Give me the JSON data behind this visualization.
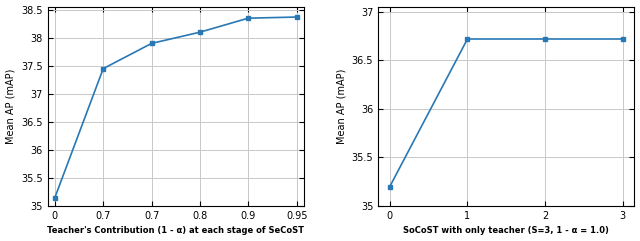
{
  "left": {
    "x_positions": [
      0,
      1,
      2,
      3,
      4,
      5
    ],
    "x_tick_labels": [
      "0",
      "0.7",
      "0.7",
      "0.8",
      "0.9",
      "0.95"
    ],
    "y": [
      35.15,
      37.45,
      37.9,
      38.1,
      38.35,
      38.37
    ],
    "ylabel": "Mean AP (mAP)",
    "xlabel": "Teacher's Contribution (1 - α) at each stage of SeCoST",
    "ylim": [
      35.0,
      38.55
    ],
    "yticks": [
      35,
      35.5,
      36,
      36.5,
      37,
      37.5,
      38,
      38.5
    ],
    "color": "#2878b5",
    "grid_color": "#c8c8c8",
    "vline_positions": [
      3,
      4
    ]
  },
  "right": {
    "x": [
      0,
      1,
      2,
      3
    ],
    "y": [
      35.2,
      36.72,
      36.72,
      36.72
    ],
    "ylabel": "Mean AP (mAP)",
    "xlabel": "SoCoST with only teacher (S=3, 1 - α = 1.0)",
    "ylim": [
      35.0,
      37.05
    ],
    "yticks": [
      35,
      35.5,
      36,
      36.5,
      37
    ],
    "xticks": [
      0,
      1,
      2,
      3
    ],
    "color": "#2878b5",
    "grid_color": "#c8c8c8"
  },
  "fig_width": 6.4,
  "fig_height": 2.41,
  "dpi": 100
}
